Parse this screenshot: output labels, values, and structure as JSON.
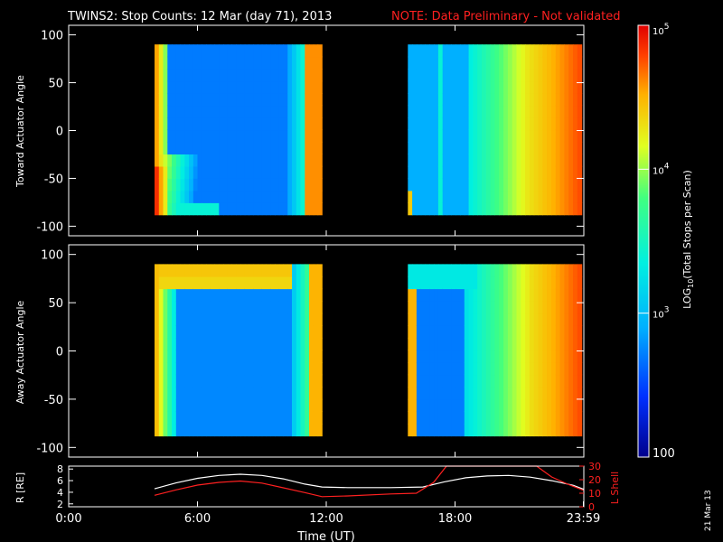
{
  "title": {
    "main": "TWINS2: Stop Counts: 12 Mar (day  71), 2013",
    "note": "NOTE: Data Preliminary - Not validated"
  },
  "date_stamp": "21 Mar 13",
  "colors": {
    "background": "#000000",
    "axis": "#ffffff",
    "note": "#ff2020",
    "r_line": "#ffffff",
    "lshell_line": "#ff2020"
  },
  "chart_data": [
    {
      "type": "heatmap",
      "name": "toward",
      "ylabel": "Toward Actuator Angle",
      "ylim": [
        -110,
        110
      ],
      "yticks": [
        "100",
        "50",
        "0",
        "-50",
        "-100"
      ],
      "x_range_hours": [
        0,
        24
      ],
      "data_y_range": [
        -88,
        90
      ],
      "data_intervals_hours": [
        [
          4.0,
          11.8
        ],
        [
          15.8,
          23.9
        ]
      ]
    },
    {
      "type": "heatmap",
      "name": "away",
      "ylabel": "Away Actuator Angle",
      "ylim": [
        -110,
        110
      ],
      "yticks": [
        "100",
        "50",
        "0",
        "-50",
        "-100"
      ],
      "x_range_hours": [
        0,
        24
      ],
      "data_y_range": [
        -88,
        90
      ],
      "data_intervals_hours": [
        [
          4.0,
          11.8
        ],
        [
          15.8,
          23.9
        ]
      ]
    },
    {
      "type": "line",
      "name": "orbit",
      "ylabel_left": "R [RE]",
      "ylabel_right": "L Shell",
      "xlabel": "Time (UT)",
      "xticks": [
        "0:00",
        "6:00",
        "12:00",
        "18:00",
        "23:59"
      ],
      "yticks_left": [
        "8",
        "6",
        "4",
        "2"
      ],
      "yticks_right": [
        "30",
        "20",
        "10",
        "0"
      ],
      "ylim_left": [
        1.5,
        8.5
      ],
      "ylim_right": [
        0,
        30
      ],
      "series": [
        {
          "name": "R",
          "axis": "left",
          "x": [
            4.0,
            5.0,
            6.0,
            7.0,
            8.0,
            9.0,
            10.0,
            11.0,
            11.8,
            13.0,
            15.0,
            16.5,
            17.5,
            18.5,
            19.5,
            20.5,
            21.5,
            22.5,
            23.5,
            24.0
          ],
          "y": [
            4.6,
            5.6,
            6.4,
            6.9,
            7.1,
            6.9,
            6.3,
            5.4,
            4.9,
            4.8,
            4.8,
            4.9,
            5.8,
            6.5,
            6.8,
            6.9,
            6.6,
            6.0,
            5.2,
            4.5
          ]
        },
        {
          "name": "L Shell",
          "axis": "right",
          "x": [
            4.0,
            5.0,
            6.0,
            7.0,
            8.0,
            9.0,
            10.0,
            11.0,
            11.8,
            13.0,
            15.0,
            16.2,
            17.0,
            17.6,
            21.8,
            22.5,
            23.2,
            24.0
          ],
          "y": [
            8.5,
            12.5,
            16.0,
            18.0,
            19.0,
            17.5,
            14.0,
            10.5,
            7.5,
            8.0,
            9.5,
            10.0,
            18.0,
            32.0,
            32.0,
            22.0,
            17.0,
            12.0
          ]
        }
      ]
    }
  ],
  "colorbar": {
    "label": "LOG10(Total Stops per Scan)",
    "label_prefix": "LOG",
    "label_sub": "10",
    "label_rest": "(Total Stops per Scan)",
    "range": [
      100,
      100000
    ],
    "scale": "log",
    "tick_labels": [
      {
        "base": "10",
        "exp": "5",
        "value": 100000
      },
      {
        "base": "10",
        "exp": "4",
        "value": 10000
      },
      {
        "base": "10",
        "exp": "3",
        "value": 1000
      },
      {
        "base": "100",
        "exp": "",
        "value": 100
      }
    ]
  }
}
